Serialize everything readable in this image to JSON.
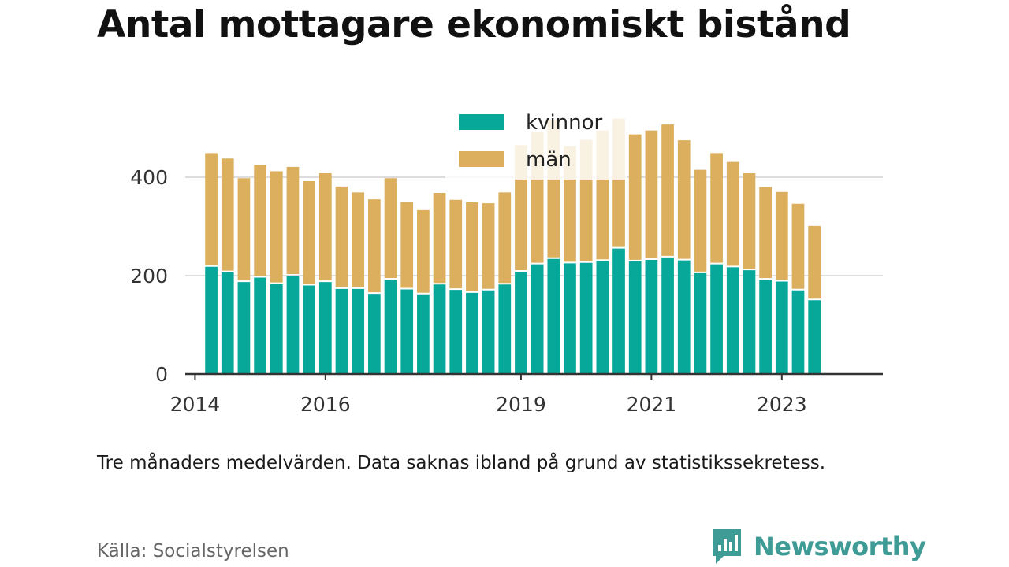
{
  "title": "Antal mottagare ekonomiskt bistånd",
  "note": "Tre månaders medelvärden. Data saknas ibland på grund av statistikssekretess.",
  "source": "Källa: Socialstyrelsen",
  "brand": {
    "name": "Newsworthy",
    "icon": "newsworthy-chart-bubble-icon"
  },
  "colors": {
    "kvinnor": "#07a89a",
    "man": "#dbaf5e",
    "grid": "#dddddd",
    "axis": "#333333",
    "text": "#333333"
  },
  "chart_data": {
    "type": "bar",
    "stacked": true,
    "legend_position": "top-center",
    "grid": true,
    "ylim": [
      0,
      520
    ],
    "yticks": [
      0,
      200,
      400
    ],
    "xlim": [
      2013.85,
      2024.55
    ],
    "xticks": [
      {
        "value": 2014,
        "label": "2014"
      },
      {
        "value": 2016,
        "label": "2016"
      },
      {
        "value": 2019,
        "label": "2019"
      },
      {
        "value": 2021,
        "label": "2021"
      },
      {
        "value": 2023,
        "label": "2023"
      }
    ],
    "x": [
      2014.25,
      2014.5,
      2014.75,
      2015.0,
      2015.25,
      2015.5,
      2015.75,
      2016.0,
      2016.25,
      2016.5,
      2016.75,
      2017.0,
      2017.25,
      2017.5,
      2017.75,
      2018.0,
      2018.25,
      2018.5,
      2018.75,
      2019.0,
      2019.25,
      2019.5,
      2019.75,
      2020.0,
      2020.25,
      2020.5,
      2020.75,
      2021.0,
      2021.25,
      2021.5,
      2021.75,
      2022.0,
      2022.25,
      2022.5,
      2022.75,
      2023.0,
      2023.25,
      2023.5
    ],
    "series": [
      {
        "name": "kvinnor",
        "values": [
          218,
          207,
          187,
          196,
          183,
          200,
          180,
          187,
          173,
          173,
          163,
          192,
          172,
          162,
          182,
          171,
          165,
          170,
          182,
          208,
          223,
          234,
          225,
          226,
          230,
          255,
          229,
          232,
          237,
          231,
          205,
          223,
          217,
          211,
          192,
          188,
          170,
          150
        ]
      },
      {
        "name": "män",
        "values": [
          231,
          231,
          211,
          229,
          229,
          221,
          212,
          221,
          208,
          196,
          192,
          206,
          178,
          171,
          186,
          183,
          184,
          177,
          187,
          257,
          268,
          283,
          238,
          250,
          265,
          264,
          258,
          263,
          270,
          244,
          210,
          226,
          214,
          197,
          188,
          182,
          176,
          151
        ]
      }
    ]
  }
}
